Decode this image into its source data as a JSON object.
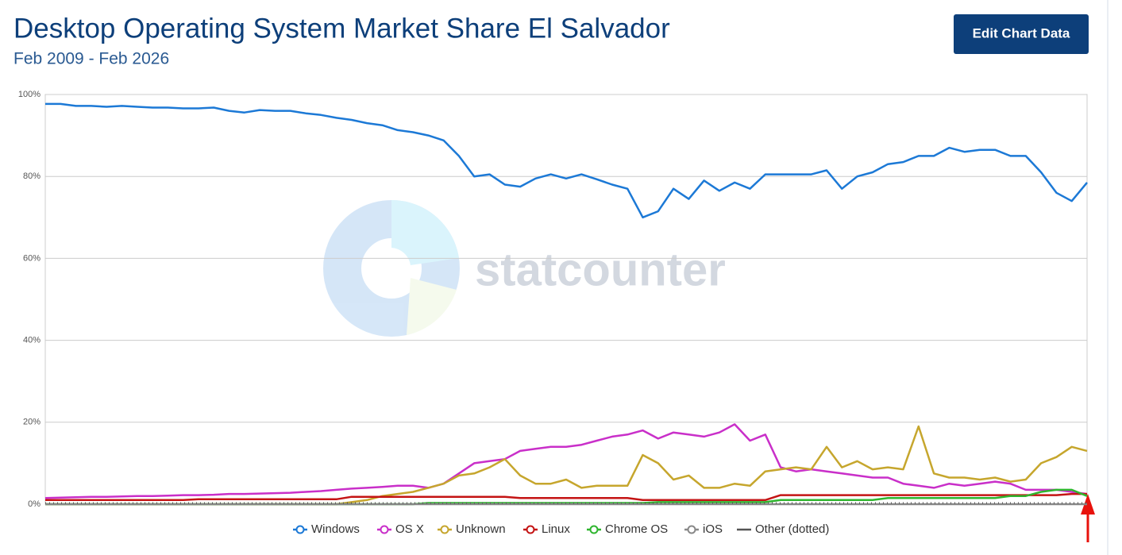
{
  "chart_data": {
    "type": "line",
    "title": "Desktop Operating System Market Share El Salvador",
    "subtitle": "Feb 2009 - Feb 2026",
    "button": "Edit Chart Data",
    "watermark": "statcounter",
    "ylim": [
      0,
      100
    ],
    "yticks": [
      {
        "value": 0,
        "label": "0%"
      },
      {
        "value": 20,
        "label": "20%"
      },
      {
        "value": 40,
        "label": "40%"
      },
      {
        "value": 60,
        "label": "60%"
      },
      {
        "value": 80,
        "label": "80%"
      },
      {
        "value": 100,
        "label": "100%"
      }
    ],
    "grid": true,
    "legend": "bottom",
    "series": [
      {
        "name": "Windows",
        "color": "#1c79d6",
        "values": [
          97.7,
          97.7,
          97.2,
          97.2,
          97,
          97.2,
          97,
          96.8,
          96.8,
          96.6,
          96.6,
          96.8,
          96,
          95.6,
          96.2,
          96,
          96,
          95.4,
          95,
          94.3,
          93.8,
          93,
          92.5,
          91.3,
          90.8,
          90,
          88.8,
          85,
          80,
          80.5,
          78,
          77.5,
          79.5,
          80.5,
          79.5,
          80.5,
          79.3,
          78,
          77,
          70,
          71.5,
          77,
          74.5,
          79,
          76.5,
          78.5,
          77,
          80.5,
          80.5,
          80.5,
          80.5,
          81.5,
          77,
          80,
          81,
          83,
          83.5,
          85,
          85,
          87,
          86,
          86.5,
          86.5,
          85,
          85,
          81,
          76,
          74,
          78.5
        ]
      },
      {
        "name": "OS X",
        "color": "#c92fc9",
        "values": [
          1.5,
          1.6,
          1.7,
          1.8,
          1.8,
          1.9,
          2,
          2,
          2.1,
          2.2,
          2.2,
          2.3,
          2.5,
          2.5,
          2.6,
          2.7,
          2.8,
          3,
          3.2,
          3.5,
          3.8,
          4,
          4.2,
          4.5,
          4.5,
          4,
          5,
          7.5,
          10,
          10.5,
          11,
          13,
          13.5,
          14,
          14,
          14.5,
          15.5,
          16.5,
          17,
          18,
          16,
          17.5,
          17,
          16.5,
          17.5,
          19.5,
          15.5,
          17,
          9,
          8,
          8.5,
          8,
          7.5,
          7,
          6.5,
          6.5,
          5,
          4.5,
          4,
          5,
          4.5,
          5,
          5.5,
          5,
          3.5,
          3.5,
          3.5,
          3,
          2.5
        ]
      },
      {
        "name": "Unknown",
        "color": "#c6a62d",
        "values": [
          0,
          0,
          0,
          0,
          0,
          0,
          0,
          0,
          0,
          0,
          0,
          0,
          0,
          0,
          0,
          0,
          0,
          0,
          0,
          0,
          0.5,
          1,
          2,
          2.5,
          3,
          4,
          5,
          7,
          7.5,
          9,
          11,
          7,
          5,
          5,
          6,
          4,
          4.5,
          4.5,
          4.5,
          12,
          10,
          6,
          7,
          4,
          4,
          5,
          4.5,
          8,
          8.5,
          9,
          8.5,
          14,
          9,
          10.5,
          8.5,
          9,
          8.5,
          19,
          7.5,
          6.5,
          6.5,
          6,
          6.5,
          5.5,
          6,
          10,
          11.5,
          14,
          13
        ]
      },
      {
        "name": "Linux",
        "color": "#c41414",
        "values": [
          1,
          1,
          1,
          1,
          1,
          1,
          1,
          1,
          1,
          1,
          1.2,
          1.2,
          1.2,
          1.2,
          1.2,
          1.2,
          1.2,
          1.2,
          1.2,
          1.2,
          1.8,
          1.8,
          1.8,
          1.8,
          1.8,
          1.8,
          1.8,
          1.8,
          1.8,
          1.8,
          1.8,
          1.5,
          1.5,
          1.5,
          1.5,
          1.5,
          1.5,
          1.5,
          1.5,
          1,
          1,
          1,
          1,
          1,
          1,
          1,
          1,
          1,
          2.2,
          2.2,
          2.2,
          2.2,
          2.2,
          2.2,
          2.2,
          2.2,
          2.2,
          2.2,
          2.2,
          2.2,
          2.2,
          2.2,
          2.2,
          2.2,
          2.2,
          2.2,
          2.2,
          2.5,
          2.5
        ]
      },
      {
        "name": "Chrome OS",
        "color": "#2fb52f",
        "values": [
          0,
          0,
          0,
          0,
          0,
          0,
          0,
          0,
          0,
          0,
          0,
          0,
          0,
          0,
          0,
          0,
          0,
          0,
          0,
          0,
          0,
          0,
          0,
          0,
          0,
          0.3,
          0.3,
          0.3,
          0.3,
          0.3,
          0.3,
          0.3,
          0.3,
          0.3,
          0.3,
          0.3,
          0.3,
          0.3,
          0.3,
          0.3,
          0.5,
          0.5,
          0.5,
          0.5,
          0.5,
          0.5,
          0.5,
          0.5,
          1,
          1,
          1,
          1,
          1,
          1,
          1,
          1.5,
          1.5,
          1.5,
          1.5,
          1.5,
          1.5,
          1.5,
          1.5,
          2,
          2,
          3,
          3.5,
          3.5,
          2
        ]
      },
      {
        "name": "iOS",
        "color": "#888888",
        "values": [
          0,
          0,
          0,
          0,
          0,
          0,
          0,
          0,
          0,
          0,
          0,
          0,
          0,
          0,
          0,
          0,
          0,
          0,
          0,
          0,
          0,
          0,
          0,
          0,
          0,
          0,
          0,
          0,
          0,
          0,
          0,
          0,
          0,
          0,
          0,
          0,
          0,
          0,
          0,
          0,
          0,
          0,
          0,
          0,
          0,
          0,
          0,
          0,
          0,
          0,
          0,
          0,
          0,
          0,
          0,
          0,
          0,
          0,
          0,
          0,
          0,
          0,
          0,
          0,
          0,
          0,
          0,
          0,
          0
        ]
      },
      {
        "name": "Other (dotted)",
        "color": "#555555",
        "dotted": true,
        "values": [
          0.3,
          0.3,
          0.3,
          0.3,
          0.3,
          0.3,
          0.3,
          0.3,
          0.3,
          0.3,
          0.3,
          0.3,
          0.3,
          0.3,
          0.3,
          0.3,
          0.3,
          0.3,
          0.3,
          0.3,
          0.3,
          0.3,
          0.3,
          0.3,
          0.3,
          0.3,
          0.3,
          0.3,
          0.3,
          0.3,
          0.3,
          0.3,
          0.3,
          0.3,
          0.3,
          0.3,
          0.3,
          0.3,
          0.3,
          0.3,
          0.3,
          0.3,
          0.3,
          0.3,
          0.3,
          0.3,
          0.3,
          0.3,
          0.3,
          0.3,
          0.3,
          0.3,
          0.3,
          0.3,
          0.3,
          0.3,
          0.3,
          0.3,
          0.3,
          0.3,
          0.3,
          0.3,
          0.3,
          0.3,
          0.3,
          0.3,
          0.3,
          0.3,
          0.3
        ]
      }
    ]
  }
}
